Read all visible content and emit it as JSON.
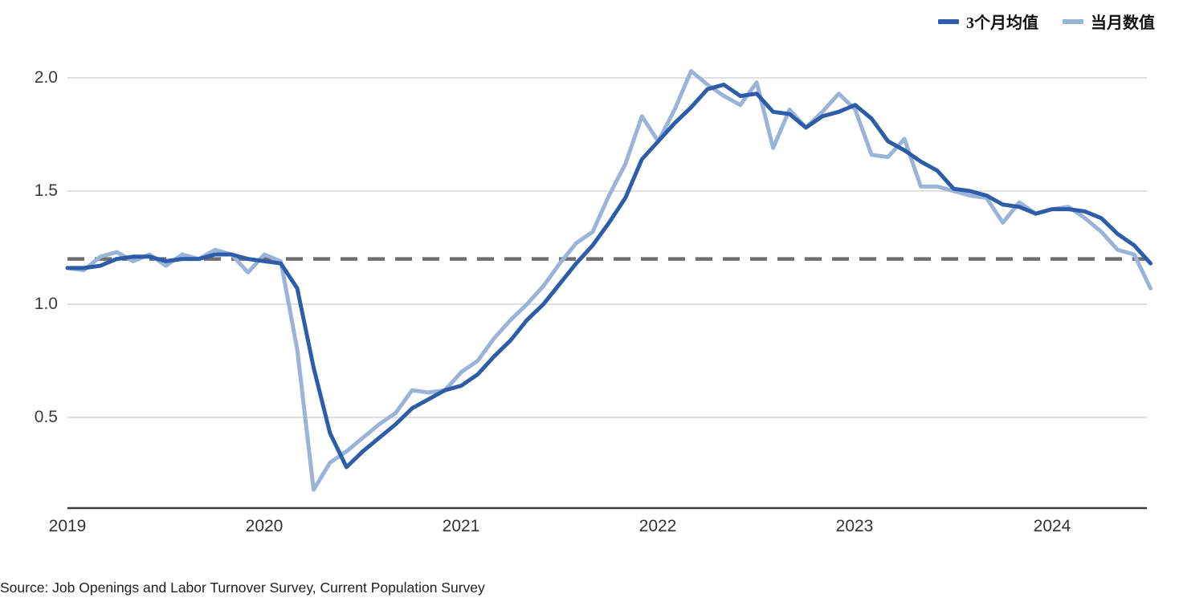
{
  "source_note": "Source: Job Openings and Labor Turnover Survey, Current Population Survey",
  "legend": {
    "items": [
      {
        "label": "3个月均值",
        "color": "#2d5da8"
      },
      {
        "label": "当月数值",
        "color": "#9ab3d8"
      }
    ],
    "position": "top-right"
  },
  "chart_data": {
    "type": "line",
    "grid": "horizontal",
    "legend_position": "top-right",
    "ylim": [
      0.1,
      2.1
    ],
    "y_ticks": {
      "labels": [
        "2.0",
        "1.5",
        "1.0",
        "0.5"
      ],
      "values": [
        2.0,
        1.5,
        1.0,
        0.5
      ]
    },
    "x_ticks": {
      "labels": [
        "2019",
        "2020",
        "2021",
        "2022",
        "2023",
        "2024"
      ]
    },
    "reference_line": {
      "value": 1.2,
      "style": "dashed",
      "color": "#6e6e6e"
    },
    "x_months": [
      "2019-01",
      "2019-02",
      "2019-03",
      "2019-04",
      "2019-05",
      "2019-06",
      "2019-07",
      "2019-08",
      "2019-09",
      "2019-10",
      "2019-11",
      "2019-12",
      "2020-01",
      "2020-02",
      "2020-03",
      "2020-04",
      "2020-05",
      "2020-06",
      "2020-07",
      "2020-08",
      "2020-09",
      "2020-10",
      "2020-11",
      "2020-12",
      "2021-01",
      "2021-02",
      "2021-03",
      "2021-04",
      "2021-05",
      "2021-06",
      "2021-07",
      "2021-08",
      "2021-09",
      "2021-10",
      "2021-11",
      "2021-12",
      "2022-01",
      "2022-02",
      "2022-03",
      "2022-04",
      "2022-05",
      "2022-06",
      "2022-07",
      "2022-08",
      "2022-09",
      "2022-10",
      "2022-11",
      "2022-12",
      "2023-01",
      "2023-02",
      "2023-03",
      "2023-04",
      "2023-05",
      "2023-06",
      "2023-07",
      "2023-08",
      "2023-09",
      "2023-10",
      "2023-11",
      "2023-12",
      "2024-01",
      "2024-02",
      "2024-03",
      "2024-04",
      "2024-05",
      "2024-06",
      "2024-07"
    ],
    "series": [
      {
        "name": "3个月均值",
        "color": "#2d5da8",
        "values": [
          1.16,
          1.16,
          1.17,
          1.2,
          1.21,
          1.21,
          1.19,
          1.2,
          1.2,
          1.22,
          1.22,
          1.2,
          1.19,
          1.18,
          1.07,
          0.72,
          0.43,
          0.28,
          0.35,
          0.41,
          0.47,
          0.54,
          0.58,
          0.62,
          0.64,
          0.69,
          0.77,
          0.84,
          0.93,
          1.0,
          1.09,
          1.18,
          1.26,
          1.36,
          1.47,
          1.64,
          1.72,
          1.8,
          1.87,
          1.95,
          1.97,
          1.92,
          1.93,
          1.85,
          1.84,
          1.78,
          1.83,
          1.85,
          1.88,
          1.82,
          1.72,
          1.68,
          1.63,
          1.59,
          1.51,
          1.5,
          1.48,
          1.44,
          1.43,
          1.4,
          1.42,
          1.42,
          1.41,
          1.38,
          1.31,
          1.26,
          1.18
        ]
      },
      {
        "name": "当月数值",
        "color": "#9ab3d8",
        "values": [
          1.16,
          1.15,
          1.21,
          1.23,
          1.19,
          1.22,
          1.17,
          1.22,
          1.2,
          1.24,
          1.22,
          1.14,
          1.22,
          1.19,
          0.8,
          0.18,
          0.3,
          0.35,
          0.41,
          0.47,
          0.52,
          0.62,
          0.61,
          0.62,
          0.7,
          0.75,
          0.85,
          0.93,
          1.0,
          1.08,
          1.18,
          1.27,
          1.32,
          1.48,
          1.62,
          1.83,
          1.72,
          1.86,
          2.03,
          1.97,
          1.92,
          1.88,
          1.98,
          1.69,
          1.86,
          1.78,
          1.85,
          1.93,
          1.86,
          1.66,
          1.65,
          1.73,
          1.52,
          1.52,
          1.5,
          1.48,
          1.47,
          1.36,
          1.45,
          1.4,
          1.42,
          1.43,
          1.38,
          1.32,
          1.24,
          1.22,
          1.07
        ]
      }
    ]
  }
}
